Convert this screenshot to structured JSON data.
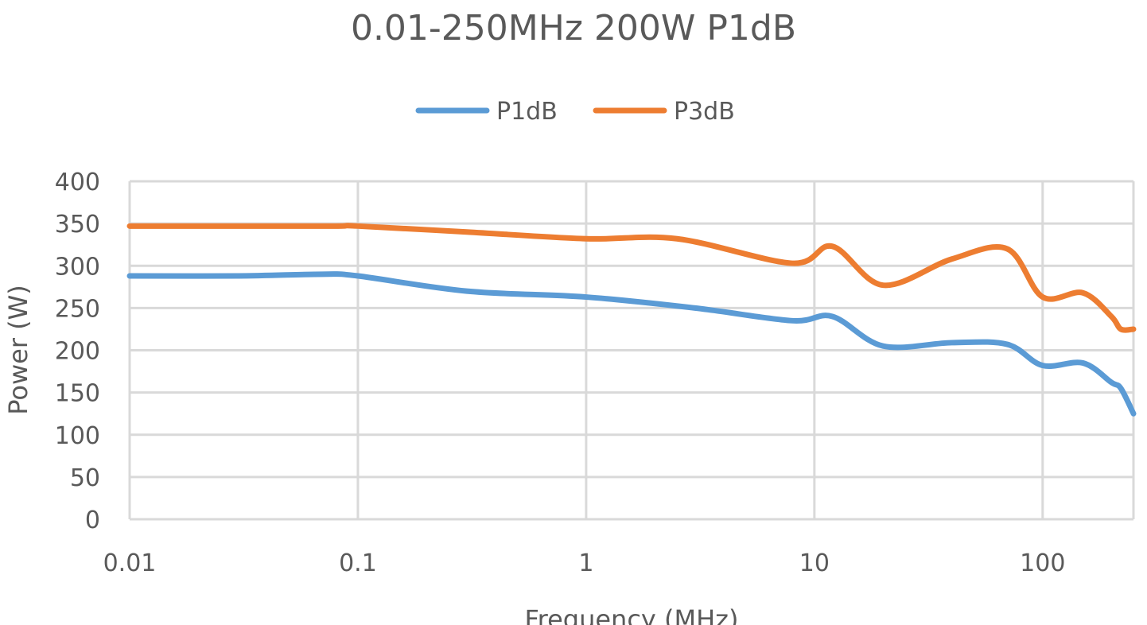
{
  "chart_data": {
    "type": "line",
    "title": "0.01-250MHz 200W P1dB",
    "xlabel": "Frequency (MHz)",
    "ylabel": "Power (W)",
    "xscale": "log",
    "xlim": [
      0.01,
      250
    ],
    "ylim": [
      0,
      400
    ],
    "grid": true,
    "legend_position": "top",
    "x_ticks": [
      0.01,
      0.1,
      1,
      10,
      100
    ],
    "x_tick_labels": [
      "0.01",
      "0.1",
      "1",
      "10",
      "100"
    ],
    "y_ticks": [
      0,
      50,
      100,
      150,
      200,
      250,
      300,
      350,
      400
    ],
    "y_tick_labels": [
      "0",
      "50",
      "100",
      "150",
      "200",
      "250",
      "300",
      "350",
      "400"
    ],
    "series": [
      {
        "name": "P1dB",
        "color": "#5B9BD5",
        "x": [
          0.01,
          0.03,
          0.07,
          0.1,
          0.3,
          1,
          3,
          8,
          12,
          20,
          40,
          70,
          100,
          150,
          200,
          220,
          250
        ],
        "y": [
          288,
          288,
          290,
          288,
          270,
          263,
          250,
          235,
          240,
          205,
          209,
          207,
          182,
          185,
          162,
          155,
          125
        ]
      },
      {
        "name": "P3dB",
        "color": "#ED7D31",
        "x": [
          0.01,
          0.03,
          0.08,
          0.1,
          0.3,
          1,
          2.5,
          8,
          12,
          20,
          40,
          70,
          100,
          150,
          200,
          220,
          250
        ],
        "y": [
          347,
          347,
          347,
          347,
          340,
          332,
          332,
          303,
          323,
          277,
          308,
          320,
          263,
          268,
          240,
          225,
          225
        ]
      }
    ]
  }
}
